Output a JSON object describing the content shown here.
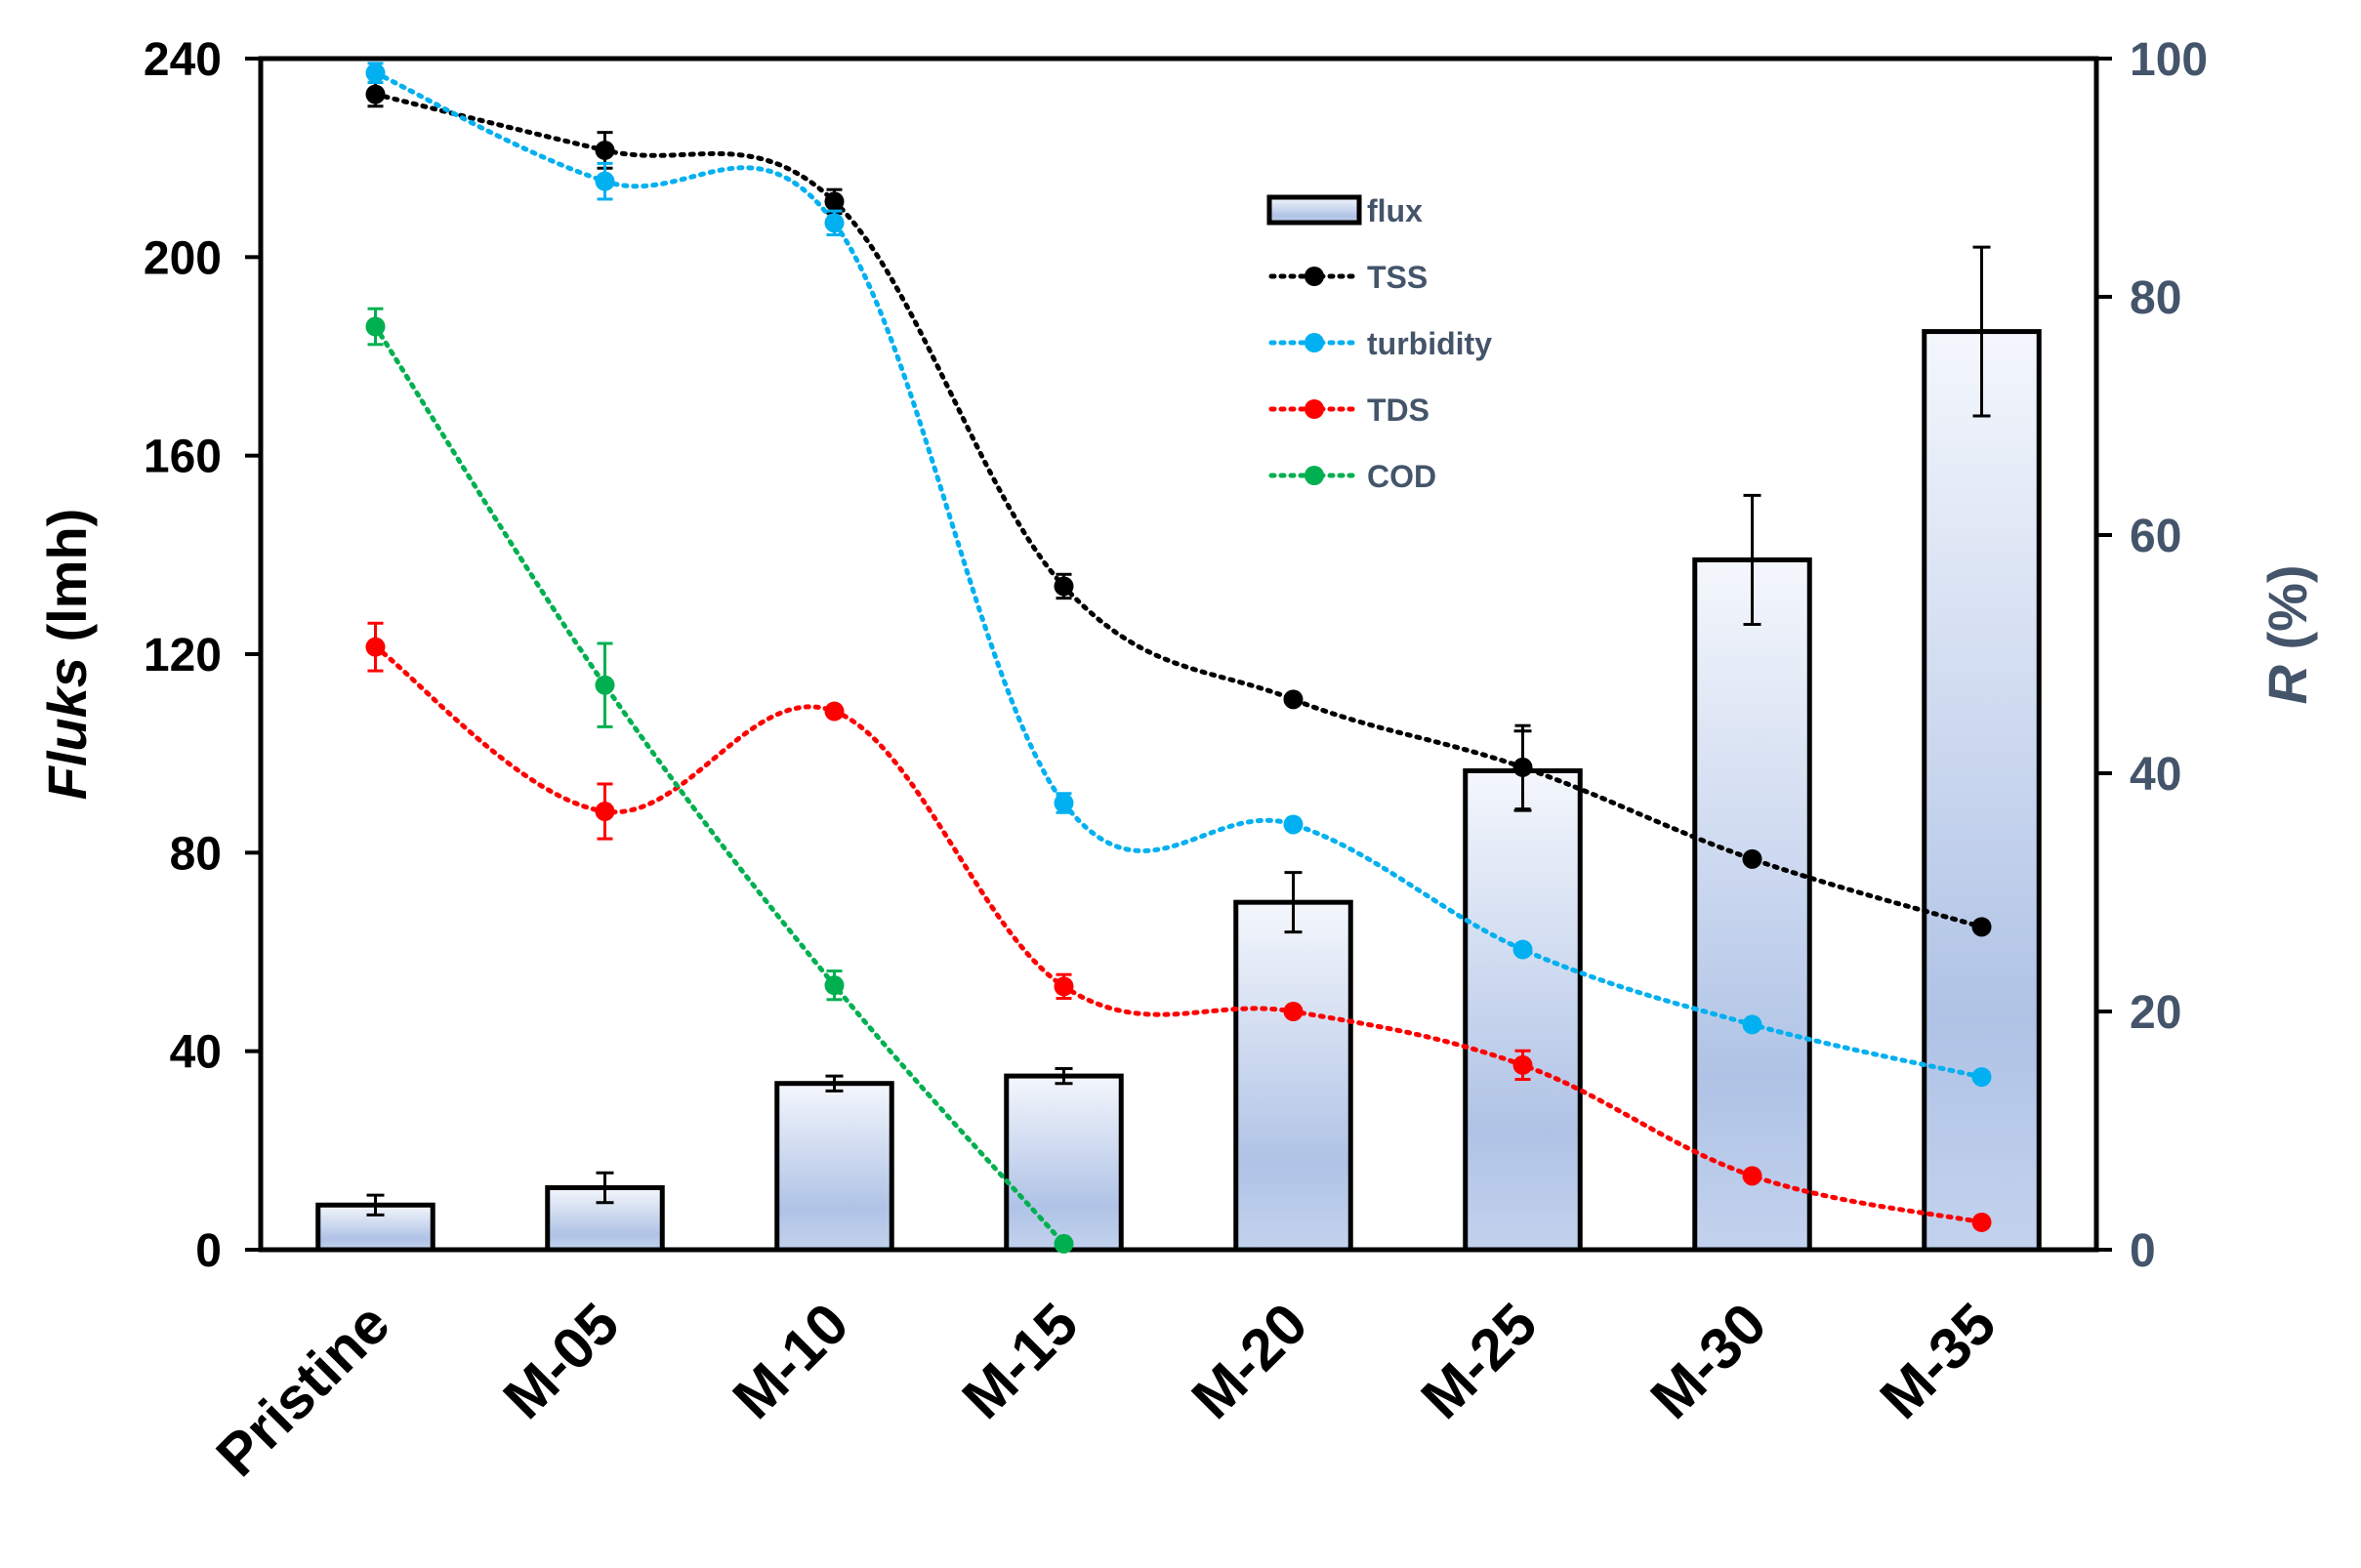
{
  "chart_data": {
    "type": "bar+line",
    "categories": [
      "Pristine",
      "M-05",
      "M-10",
      "M-15",
      "M-20",
      "M-25",
      "M-30",
      "M-35"
    ],
    "bar_series": {
      "name": "flux",
      "axis": "left",
      "values": [
        9,
        12.5,
        33.5,
        35,
        70,
        96.5,
        139,
        185
      ],
      "errors": [
        2,
        3,
        1.5,
        1.5,
        6,
        8,
        13,
        17
      ]
    },
    "line_series": [
      {
        "name": "TSS",
        "axis": "right",
        "color": "#000000",
        "values": [
          97,
          92.3,
          88,
          55.7,
          46.2,
          40.5,
          32.8,
          27.1
        ],
        "errors": [
          1,
          1.5,
          1,
          1,
          0,
          3.5,
          0,
          0
        ]
      },
      {
        "name": "turbidity",
        "axis": "right",
        "color": "#00b0f0",
        "values": [
          98.8,
          89.7,
          86.2,
          37.5,
          35.7,
          25.2,
          18.9,
          14.5
        ],
        "errors": [
          0.8,
          1.5,
          1,
          0.8,
          0,
          0,
          0,
          0
        ]
      },
      {
        "name": "TDS",
        "axis": "right",
        "color": "#ff0000",
        "values": [
          50.6,
          36.8,
          45.2,
          22.1,
          20,
          15.5,
          6.2,
          2.3
        ],
        "errors": [
          2,
          2.3,
          0,
          1,
          0,
          1.2,
          0,
          0
        ]
      },
      {
        "name": "COD",
        "axis": "right",
        "color": "#00b050",
        "values": [
          77.5,
          47.4,
          22.2,
          0.5,
          null,
          null,
          null,
          null
        ],
        "errors": [
          1.5,
          3.5,
          1.2,
          0,
          0,
          0,
          0,
          0
        ]
      }
    ],
    "y_left": {
      "label_italic": "Fluks",
      "label_rest": " (lmh)",
      "min": 0,
      "max": 240,
      "ticks": [
        0,
        40,
        80,
        120,
        160,
        200,
        240
      ]
    },
    "y_right": {
      "label_italic": "R",
      "label_rest": " (%)",
      "min": 0,
      "max": 100,
      "ticks": [
        0,
        20,
        40,
        60,
        80,
        100
      ],
      "color": "#44546a"
    },
    "legend": {
      "placement": "top-center",
      "items": [
        {
          "label": "flux",
          "kind": "bar"
        },
        {
          "label": "TSS",
          "kind": "line",
          "color": "#000000"
        },
        {
          "label": "turbidity",
          "kind": "line",
          "color": "#00b0f0"
        },
        {
          "label": "TDS",
          "kind": "line",
          "color": "#ff0000"
        },
        {
          "label": "COD",
          "kind": "line",
          "color": "#00b050"
        }
      ]
    },
    "grid": false
  }
}
